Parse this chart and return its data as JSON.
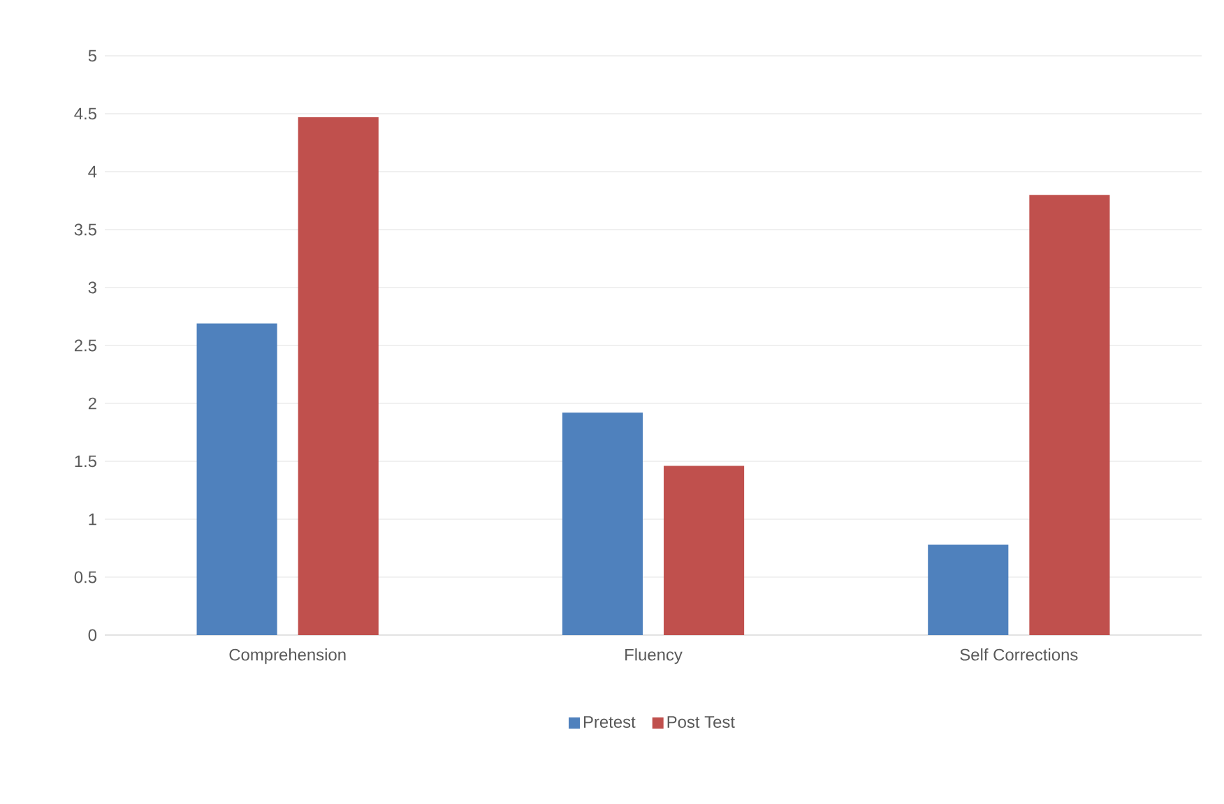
{
  "chart_data": {
    "type": "bar",
    "categories": [
      "Comprehension",
      "Fluency",
      "Self Corrections"
    ],
    "series": [
      {
        "name": "Pretest",
        "color": "#4f81bd",
        "values": [
          2.69,
          1.92,
          0.78
        ]
      },
      {
        "name": "Post Test",
        "color": "#c0504d",
        "values": [
          4.47,
          1.46,
          3.8
        ]
      }
    ],
    "ylim": [
      0,
      5
    ],
    "yticks": [
      0,
      0.5,
      1,
      1.5,
      2,
      2.5,
      3,
      3.5,
      4,
      4.5,
      5
    ],
    "grid": "y",
    "legend": "bottom"
  }
}
